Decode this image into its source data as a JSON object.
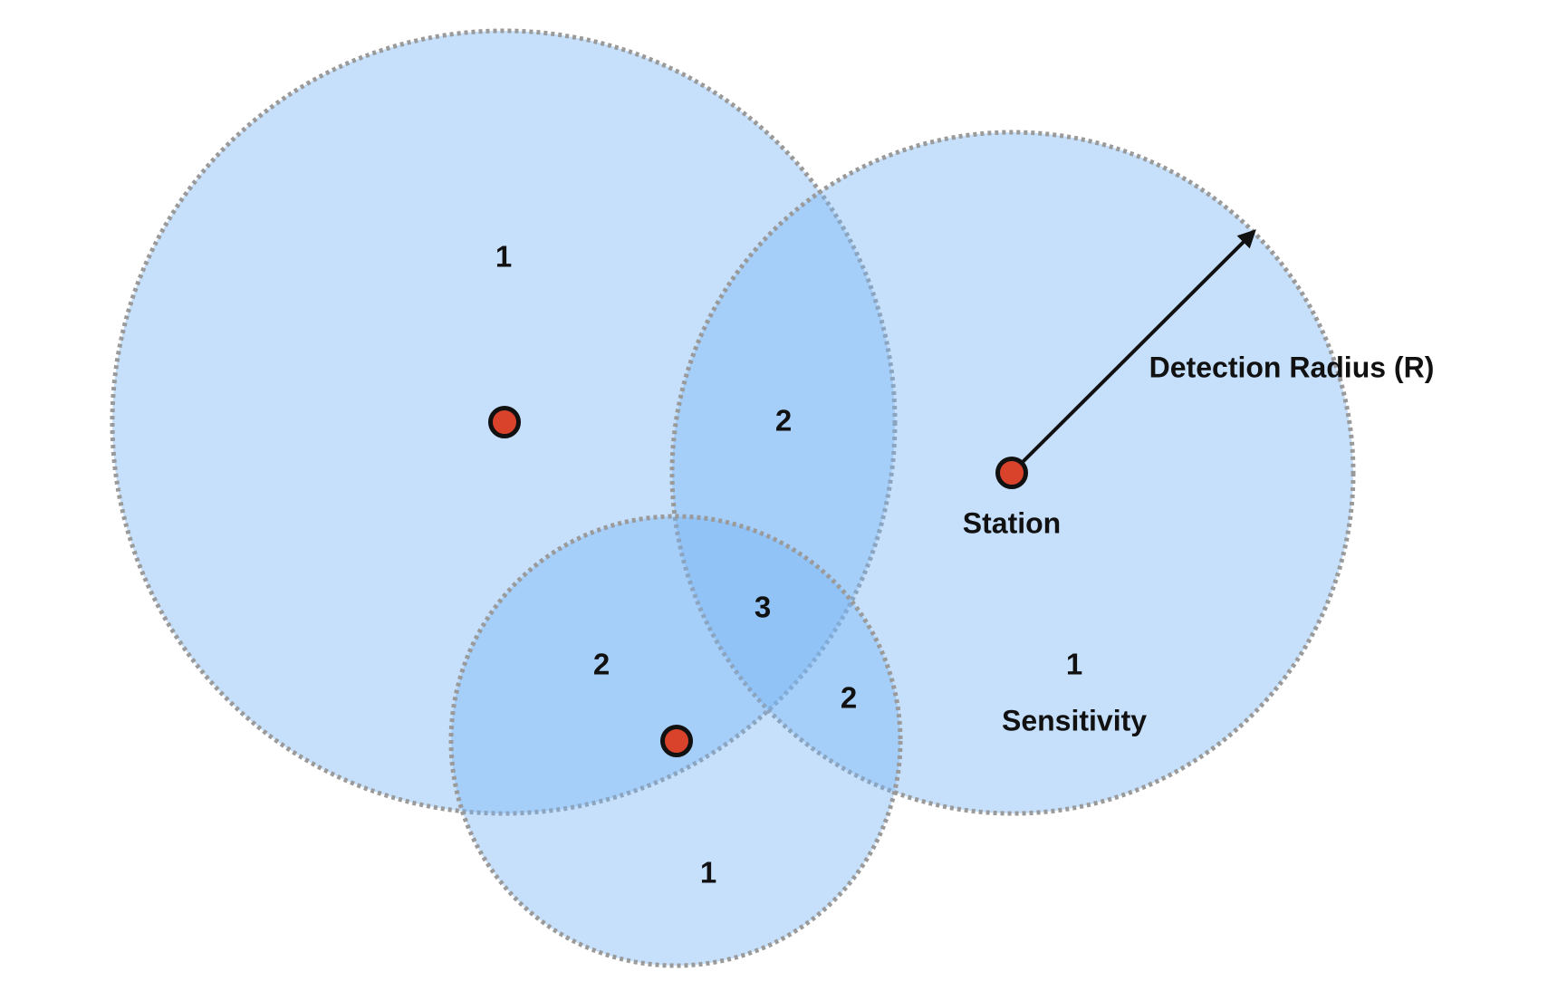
{
  "labels": {
    "station": "Station",
    "detection_radius": "Detection Radius (R)",
    "sensitivity": "Sensitivity"
  },
  "region_counts": {
    "left_only": "1",
    "left_right_overlap": "2",
    "all_three_overlap": "3",
    "left_bottom_overlap": "2",
    "right_bottom_overlap": "2",
    "right_only": "1",
    "bottom_only": "1"
  },
  "colors": {
    "coverage_fill": "#78b4f5",
    "coverage_outline": "#9a9a9a",
    "station_fill": "#d9432c",
    "text": "#111111"
  }
}
